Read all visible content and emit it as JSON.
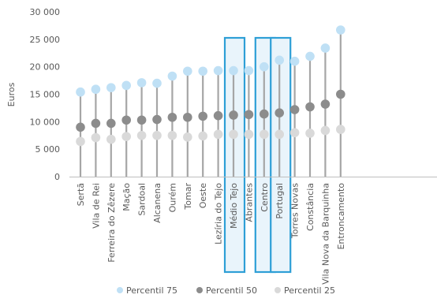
{
  "chart_data": {
    "type": "scatter",
    "ylabel": "Euros",
    "ylim": [
      0,
      30000
    ],
    "yticks": [
      0,
      5000,
      10000,
      15000,
      20000,
      25000,
      30000
    ],
    "ytick_labels": [
      "0",
      "5 000",
      "10 000",
      "15 000",
      "20 000",
      "25 000",
      "30 000"
    ],
    "grid": false,
    "legend_position": "bottom",
    "categories": [
      "Sertã",
      "Vila de Rei",
      "Ferreira do Zêzere",
      "Mação",
      "Sardoal",
      "Alcanena",
      "Ourém",
      "Tomar",
      "Oeste",
      "Lezíria do Tejo",
      "Médio Tejo",
      "Abrantes",
      "Centro",
      "Portugal",
      "Torres Novas",
      "Constância",
      "Vila Nova da Barquinha",
      "Entroncamento"
    ],
    "highlighted": [
      "Médio Tejo",
      "Centro",
      "Portugal"
    ],
    "series": [
      {
        "name": "Percentil 75",
        "color": "#bfe0f5",
        "values": [
          15400,
          15900,
          16200,
          16600,
          17100,
          17000,
          18300,
          19200,
          19200,
          19300,
          19300,
          19300,
          20000,
          21200,
          21000,
          21900,
          23400,
          26700
        ]
      },
      {
        "name": "Percentil 50",
        "color": "#8c8c8c",
        "values": [
          9000,
          9700,
          9700,
          10300,
          10300,
          10400,
          10800,
          10800,
          11000,
          11100,
          11200,
          11300,
          11400,
          11600,
          12200,
          12700,
          13200,
          15000
        ]
      },
      {
        "name": "Percentil 25",
        "color": "#d9d9d9",
        "values": [
          6400,
          7100,
          6800,
          7300,
          7500,
          7500,
          7500,
          7200,
          7400,
          7700,
          7700,
          7700,
          7700,
          7700,
          8000,
          7900,
          8400,
          8600
        ]
      }
    ],
    "highlight_color": "#2e9fd6"
  }
}
